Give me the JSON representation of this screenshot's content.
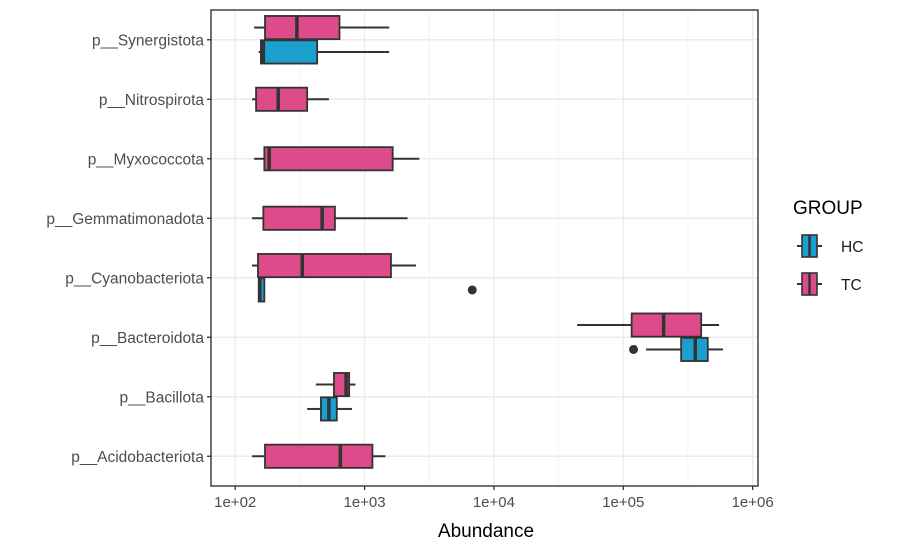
{
  "chart_data": {
    "type": "boxplot",
    "orientation": "horizontal",
    "xlabel": "Abundance",
    "x_scale": "log10",
    "xlim": [
      65,
      1100000
    ],
    "x_ticks": [
      100,
      1000,
      10000,
      100000,
      1000000
    ],
    "x_tick_labels": [
      "1e+02",
      "1e+03",
      "1e+04",
      "1e+05",
      "1e+06"
    ],
    "categories": [
      "p__Acidobacteriota",
      "p__Bacillota",
      "p__Bacteroidota",
      "p__Cyanobacteriota",
      "p__Gemmatimonadota",
      "p__Myxococcota",
      "p__Nitrospirota",
      "p__Synergistota"
    ],
    "grid": true,
    "legend": {
      "title": "GROUP",
      "position": "right"
    },
    "groups": [
      {
        "name": "HC",
        "color": "#1a9fcf"
      },
      {
        "name": "TC",
        "color": "#de4b8b"
      }
    ],
    "boxes": [
      {
        "category": "p__Acidobacteriota",
        "group": "TC",
        "min": 135,
        "q1": 170,
        "median": 650,
        "q3": 1150,
        "max": 1450,
        "outliers": []
      },
      {
        "category": "p__Bacillota",
        "group": "TC",
        "min": 420,
        "q1": 580,
        "median": 720,
        "q3": 760,
        "max": 850,
        "outliers": []
      },
      {
        "category": "p__Bacillota",
        "group": "HC",
        "min": 360,
        "q1": 460,
        "median": 530,
        "q3": 610,
        "max": 800,
        "outliers": []
      },
      {
        "category": "p__Bacteroidota",
        "group": "TC",
        "min": 44000,
        "q1": 116000,
        "median": 205000,
        "q3": 400000,
        "max": 550000,
        "outliers": []
      },
      {
        "category": "p__Bacteroidota",
        "group": "HC",
        "min": 150000,
        "q1": 280000,
        "median": 360000,
        "q3": 450000,
        "max": 590000,
        "outliers": [
          120000
        ]
      },
      {
        "category": "p__Cyanobacteriota",
        "group": "TC",
        "min": 135,
        "q1": 150,
        "median": 330,
        "q3": 1600,
        "max": 2500,
        "outliers": []
      },
      {
        "category": "p__Cyanobacteriota",
        "group": "HC",
        "min": 152,
        "q1": 152,
        "median": 155,
        "q3": 168,
        "max": 168,
        "outliers": [
          6800
        ]
      },
      {
        "category": "p__Gemmatimonadota",
        "group": "TC",
        "min": 135,
        "q1": 165,
        "median": 470,
        "q3": 590,
        "max": 2150,
        "outliers": []
      },
      {
        "category": "p__Myxococcota",
        "group": "TC",
        "min": 140,
        "q1": 168,
        "median": 183,
        "q3": 1650,
        "max": 2650,
        "outliers": []
      },
      {
        "category": "p__Nitrospirota",
        "group": "TC",
        "min": 135,
        "q1": 145,
        "median": 215,
        "q3": 360,
        "max": 530,
        "outliers": []
      },
      {
        "category": "p__Synergistota",
        "group": "TC",
        "min": 140,
        "q1": 170,
        "median": 300,
        "q3": 640,
        "max": 1550,
        "outliers": []
      },
      {
        "category": "p__Synergistota",
        "group": "HC",
        "min": 152,
        "q1": 158,
        "median": 165,
        "q3": 430,
        "max": 1550,
        "outliers": []
      }
    ]
  }
}
